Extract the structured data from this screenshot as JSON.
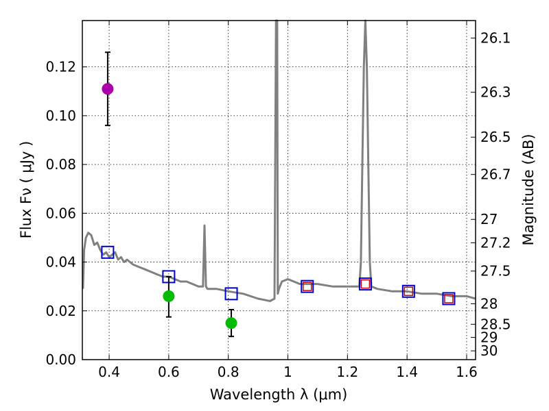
{
  "chart_data": {
    "type": "scatter",
    "xlabel": "Wavelength  λ (μm)",
    "ylabel": "Flux  Fν  ( μJy )",
    "y2label": "Magnitude (AB)",
    "xlim": [
      0.31,
      1.63
    ],
    "ylim": [
      0.0,
      0.139
    ],
    "grid": true,
    "x_ticks": [
      0.4,
      0.6,
      0.8,
      1.0,
      1.2,
      1.4,
      1.6
    ],
    "x_tick_labels": [
      "0.4",
      "0.6",
      "0.8",
      "1",
      "1.2",
      "1.4",
      "1.6"
    ],
    "y_ticks": [
      0.0,
      0.02,
      0.04,
      0.06,
      0.08,
      0.1,
      0.12
    ],
    "y_tick_labels": [
      "0.00",
      "0.02",
      "0.04",
      "0.06",
      "0.08",
      "0.10",
      "0.12"
    ],
    "y2_tick_labels": [
      "26.1",
      "26.3",
      "26.5",
      "26.7",
      "27",
      "27.2",
      "27.5",
      "28",
      "28.5",
      "29",
      "30"
    ],
    "y2_tick_flux": [
      0.1318,
      0.1096,
      0.0912,
      0.0759,
      0.0575,
      0.0479,
      0.0363,
      0.0229,
      0.0145,
      0.0091,
      0.0036
    ],
    "series": [
      {
        "name": "model-spectrum",
        "kind": "line",
        "color": "#808080",
        "x": [
          0.312,
          0.316,
          0.322,
          0.33,
          0.34,
          0.35,
          0.36,
          0.37,
          0.38,
          0.39,
          0.4,
          0.41,
          0.42,
          0.43,
          0.44,
          0.45,
          0.46,
          0.48,
          0.5,
          0.52,
          0.54,
          0.56,
          0.58,
          0.6,
          0.62,
          0.64,
          0.66,
          0.68,
          0.7,
          0.715,
          0.72,
          0.725,
          0.73,
          0.76,
          0.8,
          0.85,
          0.9,
          0.94,
          0.955,
          0.96,
          0.962,
          0.964,
          0.966,
          0.97,
          0.98,
          1.0,
          1.02,
          1.04,
          1.06,
          1.1,
          1.15,
          1.2,
          1.24,
          1.245,
          1.25,
          1.255,
          1.26,
          1.265,
          1.27,
          1.275,
          1.28,
          1.3,
          1.35,
          1.4,
          1.45,
          1.5,
          1.55,
          1.6,
          1.63
        ],
        "y": [
          0.029,
          0.045,
          0.05,
          0.052,
          0.051,
          0.047,
          0.048,
          0.045,
          0.043,
          0.044,
          0.042,
          0.043,
          0.044,
          0.041,
          0.042,
          0.04,
          0.041,
          0.039,
          0.038,
          0.037,
          0.036,
          0.035,
          0.034,
          0.034,
          0.033,
          0.032,
          0.032,
          0.031,
          0.03,
          0.03,
          0.055,
          0.03,
          0.029,
          0.029,
          0.028,
          0.027,
          0.025,
          0.024,
          0.025,
          0.139,
          0.139,
          0.139,
          0.027,
          0.029,
          0.032,
          0.033,
          0.032,
          0.031,
          0.031,
          0.031,
          0.03,
          0.03,
          0.03,
          0.04,
          0.08,
          0.12,
          0.139,
          0.12,
          0.08,
          0.04,
          0.03,
          0.029,
          0.028,
          0.028,
          0.027,
          0.027,
          0.026,
          0.026,
          0.025
        ]
      },
      {
        "name": "model-photometry",
        "kind": "open-square",
        "color": "#0000cc",
        "x": [
          0.395,
          0.6,
          0.81,
          1.065,
          1.26,
          1.405,
          1.54
        ],
        "y": [
          0.044,
          0.034,
          0.027,
          0.03,
          0.031,
          0.028,
          0.025
        ]
      },
      {
        "name": "observed-photometry",
        "kind": "open-square-small",
        "color": "#cc0000",
        "x": [
          1.065,
          1.26,
          1.405,
          1.54
        ],
        "y": [
          0.03,
          0.031,
          0.028,
          0.025
        ]
      },
      {
        "name": "detections-green",
        "kind": "filled-circle",
        "color": "#00bb00",
        "x": [
          0.6,
          0.81
        ],
        "y": [
          0.026,
          0.015
        ],
        "err_low": [
          0.0175,
          0.0095
        ],
        "err_high": [
          0.034,
          0.0205
        ]
      },
      {
        "name": "detection-magenta",
        "kind": "filled-circle",
        "color": "#aa00aa",
        "x": [
          0.395
        ],
        "y": [
          0.111
        ],
        "err_low": [
          0.096
        ],
        "err_high": [
          0.126
        ]
      }
    ]
  }
}
